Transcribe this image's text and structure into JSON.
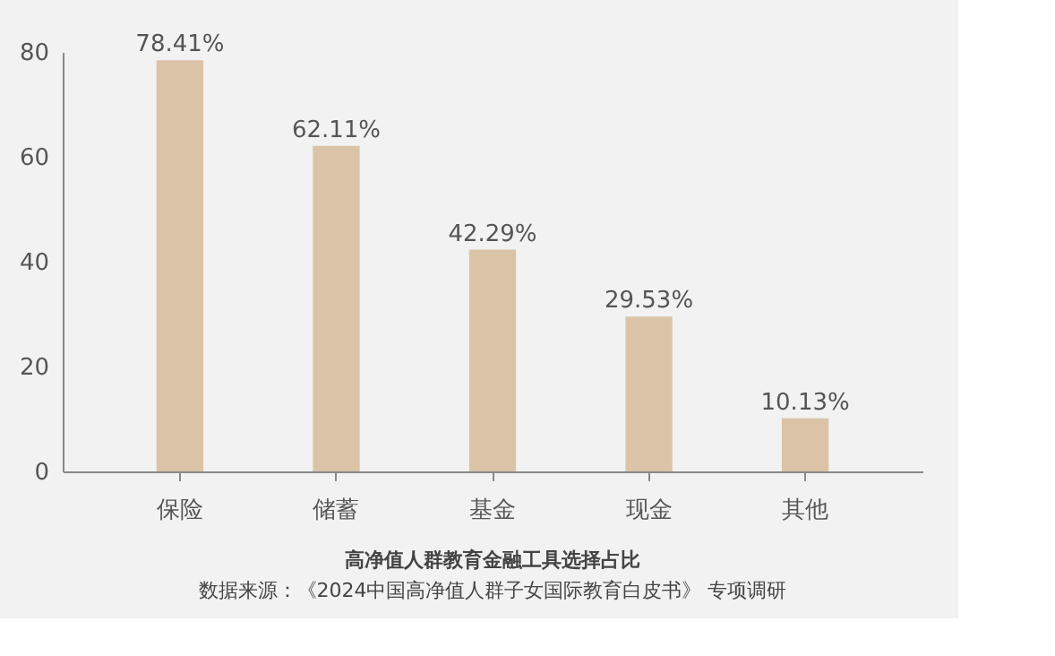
{
  "chart_data": {
    "type": "bar",
    "title": "高净值人群教育金融工具选择占比",
    "annotations": [
      "数据来源：《2024中国高净值人群子女国际教育白皮书》 专项调研"
    ],
    "categories": [
      "保险",
      "储蓄",
      "基金",
      "现金",
      "其他"
    ],
    "values": [
      78.41,
      62.11,
      42.29,
      29.53,
      10.13
    ],
    "value_labels": [
      "78.41%",
      "62.11%",
      "42.29%",
      "29.53%",
      "10.13%"
    ],
    "color": "#dbc3a8",
    "ylim": [
      0,
      80
    ],
    "yticks": [
      0,
      20,
      40,
      60,
      80
    ],
    "grid": false
  }
}
